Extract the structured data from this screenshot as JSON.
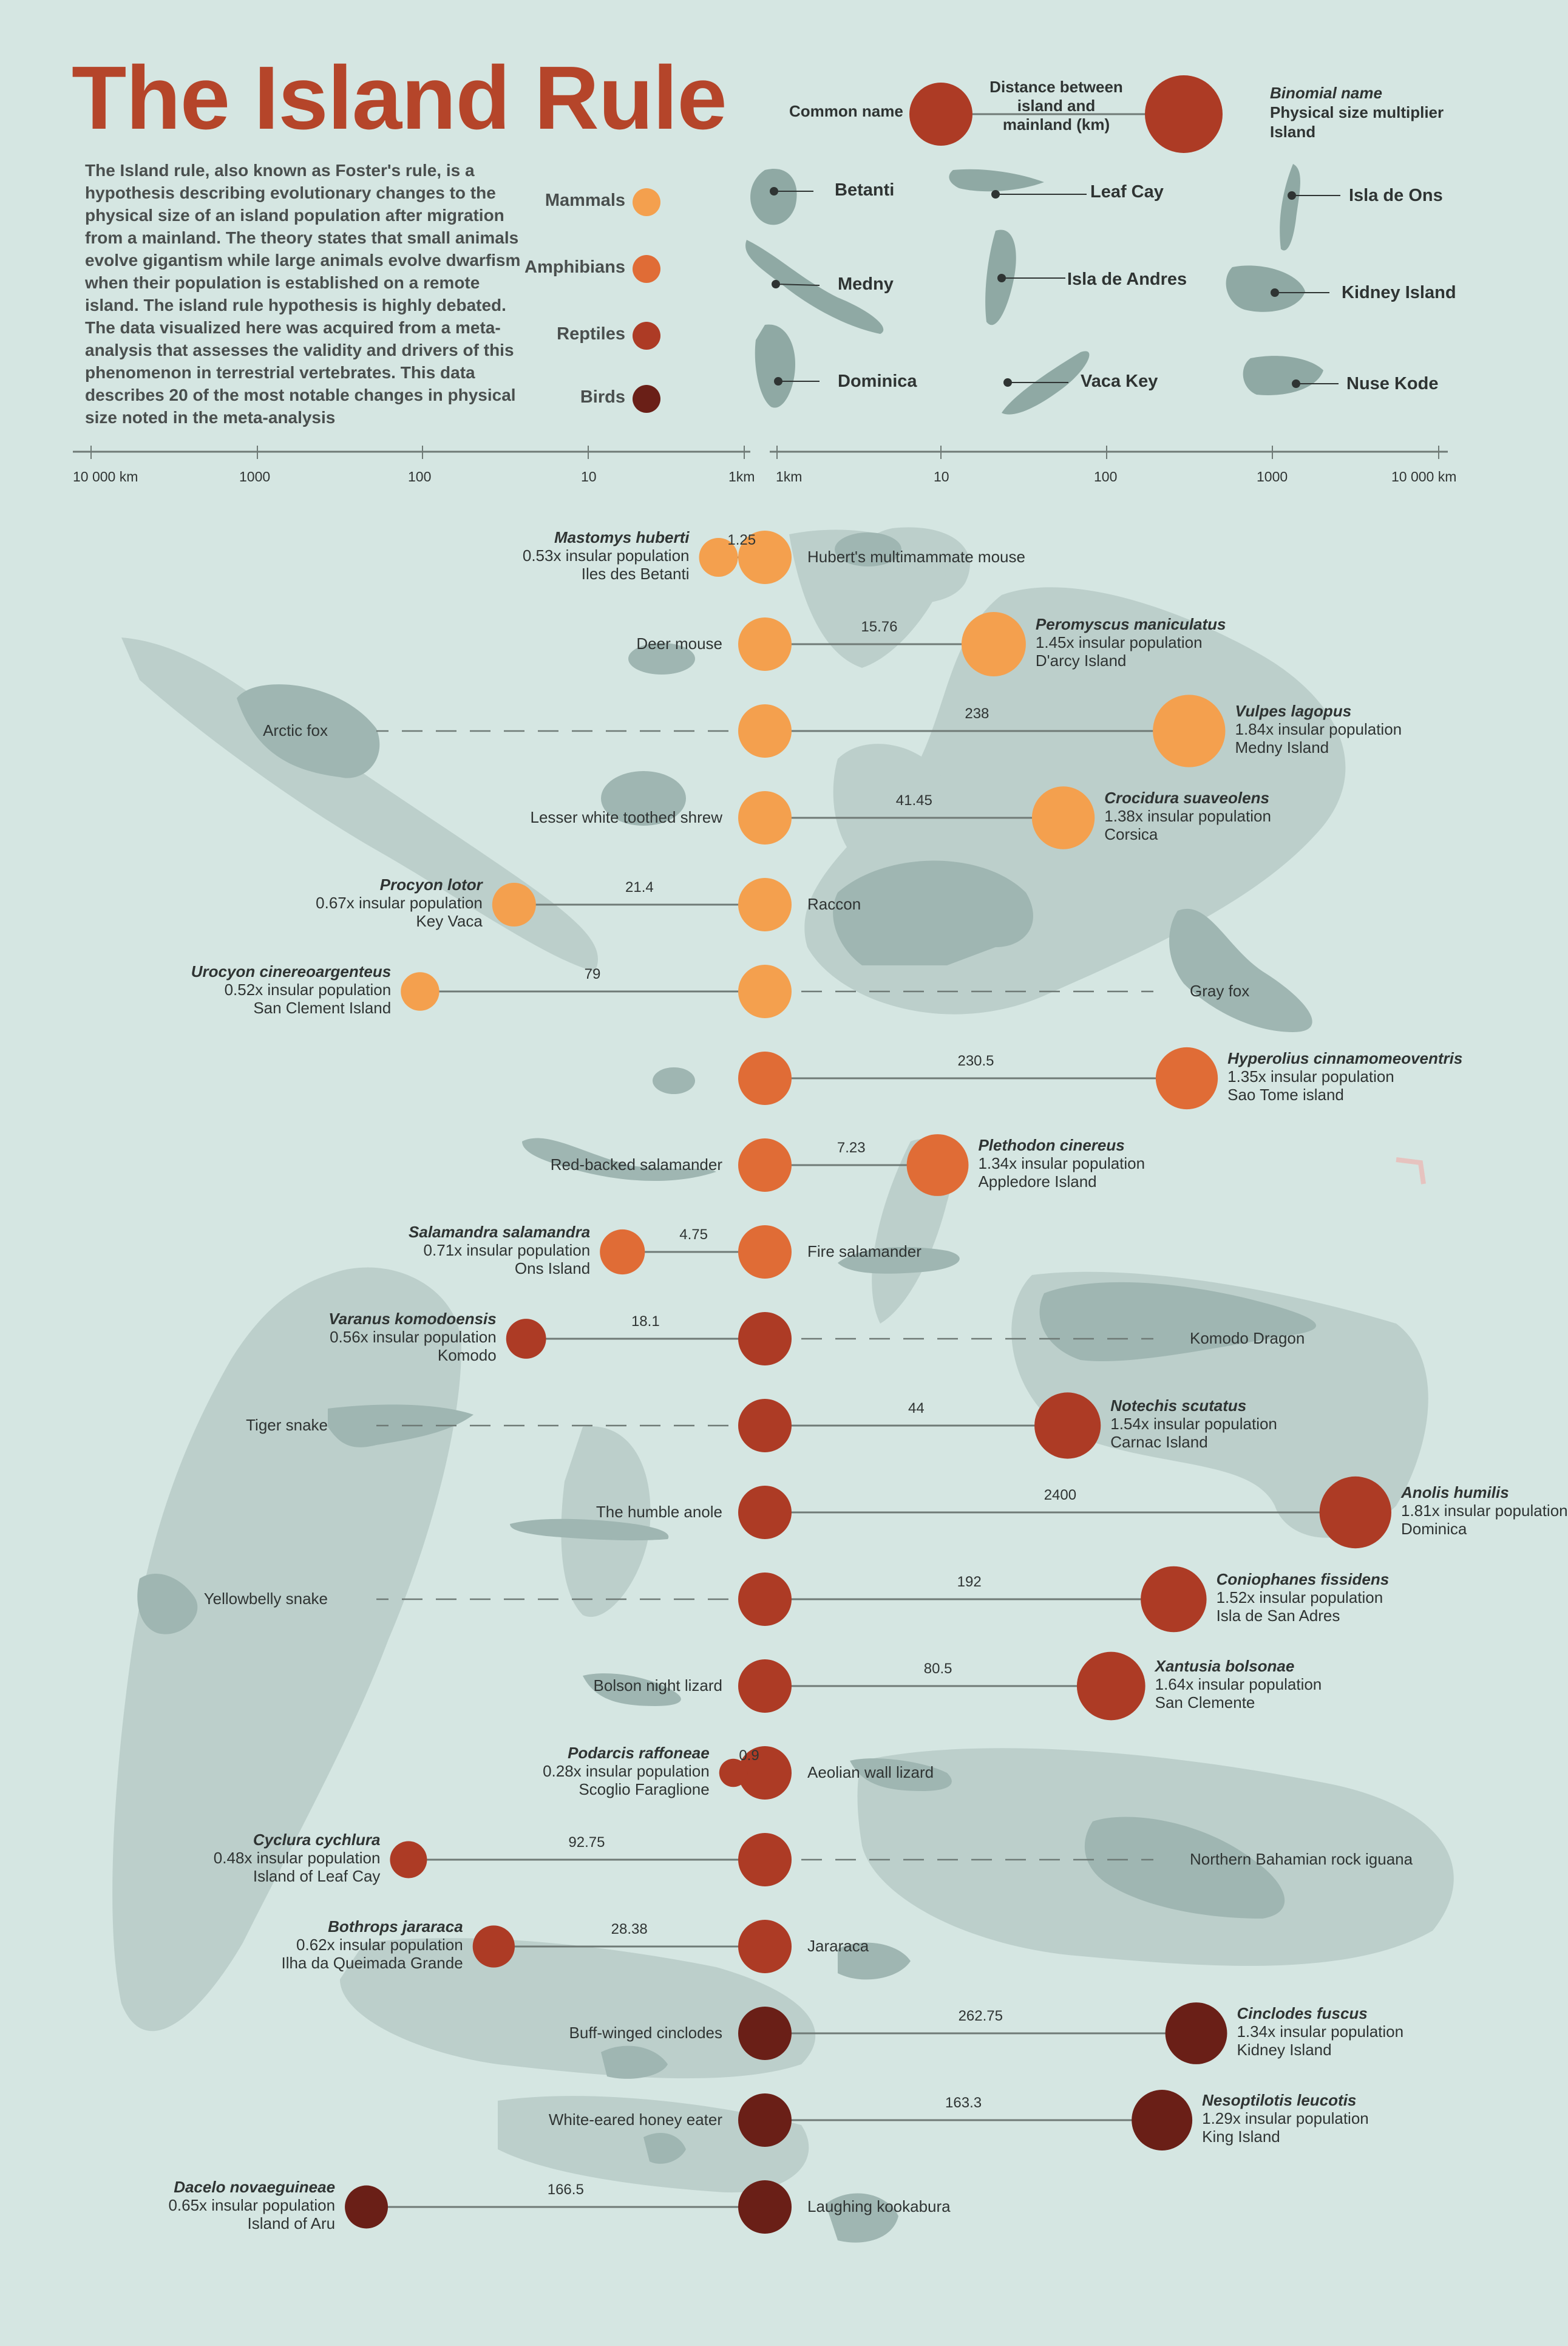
{
  "title": "The Island Rule",
  "intro": "The Island rule, also known as Foster's rule,  is a hypothesis describing evolutionary changes to the physical size of an island population after migration from a mainland. The theory states that small animals evolve gigantism while large animals evolve dwarfism when their population is established on a remote island. The island rule hypothesis is highly debated. The data visualized here was acquired from a meta-analysis that assesses the validity and drivers of this phenomenon in terrestrial vertebrates. This data describes 20 of the most notable changes in physical size noted in the meta-analysis",
  "legend": [
    {
      "label": "Mammals",
      "color": "#f4a04e"
    },
    {
      "label": "Amphibians",
      "color": "#e06c36"
    },
    {
      "label": "Reptiles",
      "color": "#ad3b25"
    },
    {
      "label": "Birds",
      "color": "#6a1f17"
    }
  ],
  "key": {
    "common_name": "Common name",
    "distance": "Distance between island and mainland (km)",
    "binomial": "Binomial name",
    "multiplier": "Physical size multiplier",
    "island": "Island"
  },
  "islands": [
    "Betanti",
    "Medny",
    "Dominica",
    "Leaf Cay",
    "Isla de Andres",
    "Vaca Key",
    "Isla de Ons",
    "Kidney Island",
    "Nuse Kode"
  ],
  "axis_left": [
    "10 000 km",
    "1000",
    "100",
    "10",
    "1km"
  ],
  "axis_right": [
    "1km",
    "10",
    "100",
    "1000",
    "10 000 km"
  ],
  "rows": [
    {
      "common": "Hubert's multimammate mouse",
      "binomial": "Mastomys huberti",
      "mult": "0.53x insular population",
      "island": "Iles des Betanti",
      "dist": "1.25",
      "distance_km": 1.25,
      "factor": 0.53,
      "side": "left",
      "cls": "Mammals",
      "dashed": false
    },
    {
      "common": "Deer mouse",
      "binomial": "Peromyscus maniculatus",
      "mult": "1.45x insular population",
      "island": "D'arcy Island",
      "dist": "15.76",
      "distance_km": 15.76,
      "factor": 1.45,
      "side": "right",
      "cls": "Mammals",
      "dashed": false
    },
    {
      "common": "Arctic fox",
      "binomial": "Vulpes lagopus",
      "mult": "1.84x insular population",
      "island": "Medny Island",
      "dist": "238",
      "distance_km": 238,
      "factor": 1.84,
      "side": "right",
      "cls": "Mammals",
      "dashed": true
    },
    {
      "common": "Lesser white toothed shrew",
      "binomial": "Crocidura suaveolens",
      "mult": "1.38x insular population",
      "island": "Corsica",
      "dist": "41.45",
      "distance_km": 41.45,
      "factor": 1.38,
      "side": "right",
      "cls": "Mammals",
      "dashed": false
    },
    {
      "common": "Raccon",
      "binomial": "Procyon lotor",
      "mult": "0.67x insular population",
      "island": "Key Vaca",
      "dist": "21.4",
      "distance_km": 21.4,
      "factor": 0.67,
      "side": "left",
      "cls": "Mammals",
      "dashed": false
    },
    {
      "common": "Gray fox",
      "binomial": "Urocyon cinereoargenteus",
      "mult": "0.52x insular population",
      "island": "San Clement Island",
      "dist": "79",
      "distance_km": 79,
      "factor": 0.52,
      "side": "left",
      "cls": "Mammals",
      "dashed": true
    },
    {
      "common": "",
      "binomial": "Hyperolius cinnamomeoventris",
      "mult": "1.35x insular population",
      "island": "Sao Tome island",
      "dist": "230.5",
      "distance_km": 230.5,
      "factor": 1.35,
      "side": "right",
      "cls": "Amphibians",
      "dashed": false
    },
    {
      "common": "Red-backed salamander",
      "binomial": "Plethodon cinereus",
      "mult": "1.34x insular population",
      "island": "Appledore Island",
      "dist": "7.23",
      "distance_km": 7.23,
      "factor": 1.34,
      "side": "right",
      "cls": "Amphibians",
      "dashed": false
    },
    {
      "common": "Fire salamander",
      "binomial": "Salamandra salamandra",
      "mult": "0.71x insular population",
      "island": "Ons Island",
      "dist": "4.75",
      "distance_km": 4.75,
      "factor": 0.71,
      "side": "left",
      "cls": "Amphibians",
      "dashed": false
    },
    {
      "common": "Komodo Dragon",
      "binomial": "Varanus komodoensis",
      "mult": "0.56x insular population",
      "island": "Komodo",
      "dist": "18.1",
      "distance_km": 18.1,
      "factor": 0.56,
      "side": "left",
      "cls": "Reptiles",
      "dashed": true
    },
    {
      "common": "Tiger snake",
      "binomial": "Notechis scutatus",
      "mult": "1.54x insular population",
      "island": "Carnac Island",
      "dist": "44",
      "distance_km": 44,
      "factor": 1.54,
      "side": "right",
      "cls": "Reptiles",
      "dashed": true
    },
    {
      "common": "The humble anole",
      "binomial": "Anolis humilis",
      "mult": "1.81x insular population",
      "island": "Dominica",
      "dist": "2400",
      "distance_km": 2400,
      "factor": 1.81,
      "side": "right",
      "cls": "Reptiles",
      "dashed": false
    },
    {
      "common": "Yellowbelly snake",
      "binomial": "Coniophanes fissidens",
      "mult": "1.52x insular population",
      "island": "Isla de San Adres",
      "dist": "192",
      "distance_km": 192,
      "factor": 1.52,
      "side": "right",
      "cls": "Reptiles",
      "dashed": true
    },
    {
      "common": "Bolson night lizard",
      "binomial": "Xantusia bolsonae",
      "mult": "1.64x insular population",
      "island": "San Clemente",
      "dist": "80.5",
      "distance_km": 80.5,
      "factor": 1.64,
      "side": "right",
      "cls": "Reptiles",
      "dashed": false
    },
    {
      "common": "Aeolian wall lizard",
      "binomial": "Podarcis raffoneae",
      "mult": "0.28x insular population",
      "island": "Scoglio Faraglione",
      "dist": "0.9",
      "distance_km": 0.9,
      "factor": 0.28,
      "side": "left",
      "cls": "Reptiles",
      "dashed": false
    },
    {
      "common": "Northern Bahamian rock iguana",
      "binomial": "Cyclura cychlura",
      "mult": "0.48x insular population",
      "island": "Island of Leaf Cay",
      "dist": "92.75",
      "distance_km": 92.75,
      "factor": 0.48,
      "side": "left",
      "cls": "Reptiles",
      "dashed": true
    },
    {
      "common": "Jararaca",
      "binomial": "Bothrops jararaca",
      "mult": "0.62x insular population",
      "island": "Ilha da Queimada Grande",
      "dist": "28.38",
      "distance_km": 28.38,
      "factor": 0.62,
      "side": "left",
      "cls": "Reptiles",
      "dashed": false
    },
    {
      "common": "Buff-winged cinclodes",
      "binomial": "Cinclodes fuscus",
      "mult": "1.34x insular population",
      "island": "Kidney Island",
      "dist": "262.75",
      "distance_km": 262.75,
      "factor": 1.34,
      "side": "right",
      "cls": "Birds",
      "dashed": false
    },
    {
      "common": "White-eared honey eater",
      "binomial": "Nesoptilotis leucotis",
      "mult": "1.29x insular population",
      "island": "King Island",
      "dist": "163.3",
      "distance_km": 163.3,
      "factor": 1.29,
      "side": "right",
      "cls": "Birds",
      "dashed": false
    },
    {
      "common": "Laughing kookabura",
      "binomial": "Dacelo novaeguineae",
      "mult": "0.65x insular population",
      "island": "Island of Aru",
      "dist": "166.5",
      "distance_km": 166.5,
      "factor": 0.65,
      "side": "left",
      "cls": "Birds",
      "dashed": false
    }
  ]
}
